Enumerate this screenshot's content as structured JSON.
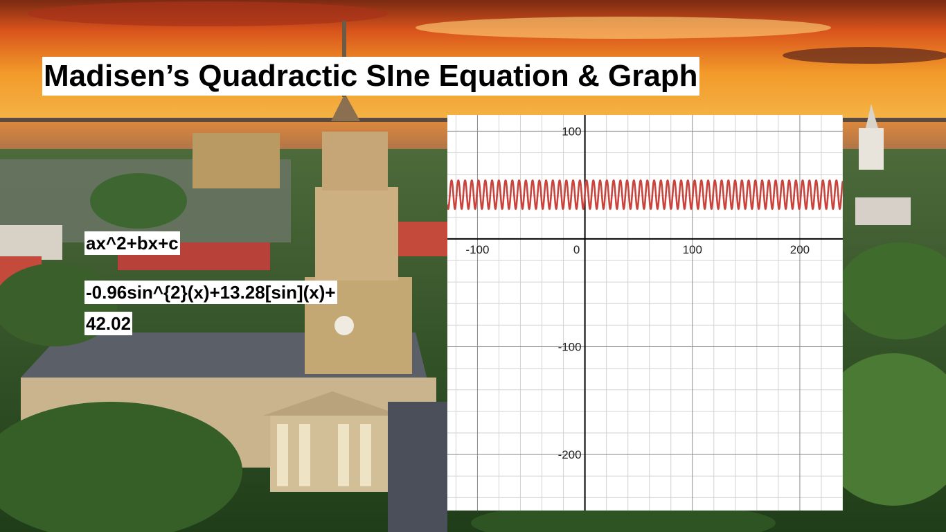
{
  "slide": {
    "title": "Madisen’s Quadractic SIne Equation & Graph",
    "equation_general": "ax^2+bx+c",
    "equation_line1": "-0.96sin^{2}(x)+13.28[sin](x)+",
    "equation_line2": "42.02"
  },
  "colors": {
    "curve": "#c8443c",
    "axis": "#000000",
    "grid_major": "#8c8c8c",
    "grid_minor": "#d2d2d2",
    "title_bg": "#ffffff"
  },
  "chart_data": {
    "type": "line",
    "title": "",
    "xlabel": "",
    "ylabel": "",
    "xlim": [
      -128,
      240
    ],
    "ylim": [
      -252,
      115
    ],
    "x_ticks": [
      -100,
      0,
      100,
      200
    ],
    "y_ticks": [
      100,
      -100,
      -200
    ],
    "x_tick_labels": [
      "-100",
      "0",
      "100",
      "200"
    ],
    "y_tick_labels": [
      "100",
      "-100",
      "-200"
    ],
    "grid": true,
    "series": [
      {
        "expression": "-0.96sin^{2}(x)+13.28[sin](x)+42.02",
        "color": "#c8443c",
        "y_min": 27.78,
        "y_max": 54.34,
        "period": 6.283
      }
    ]
  }
}
